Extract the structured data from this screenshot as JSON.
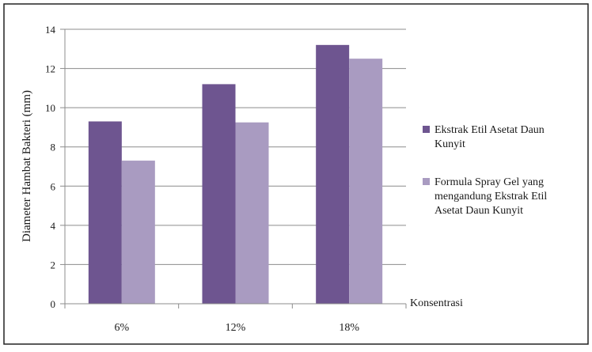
{
  "chart_data": {
    "type": "bar",
    "categories": [
      "6%",
      "12%",
      "18%"
    ],
    "series": [
      {
        "name": "Ekstrak Etil Asetat Daun Kunyit",
        "values": [
          9.3,
          11.2,
          13.2
        ],
        "color": "#6e5590"
      },
      {
        "name": "Formula Spray Gel yang mengandung Ekstrak Etil Asetat Daun Kunyit",
        "values": [
          7.3,
          9.25,
          12.5
        ],
        "color": "#a99bc1"
      }
    ],
    "xlabel": "Konsentrasi",
    "ylabel": "Diameter Hambat Bakteri (mm)",
    "ylim": [
      0,
      14
    ],
    "yticks": [
      0,
      2,
      4,
      6,
      8,
      10,
      12,
      14
    ],
    "grid": true,
    "legend_position": "right"
  }
}
